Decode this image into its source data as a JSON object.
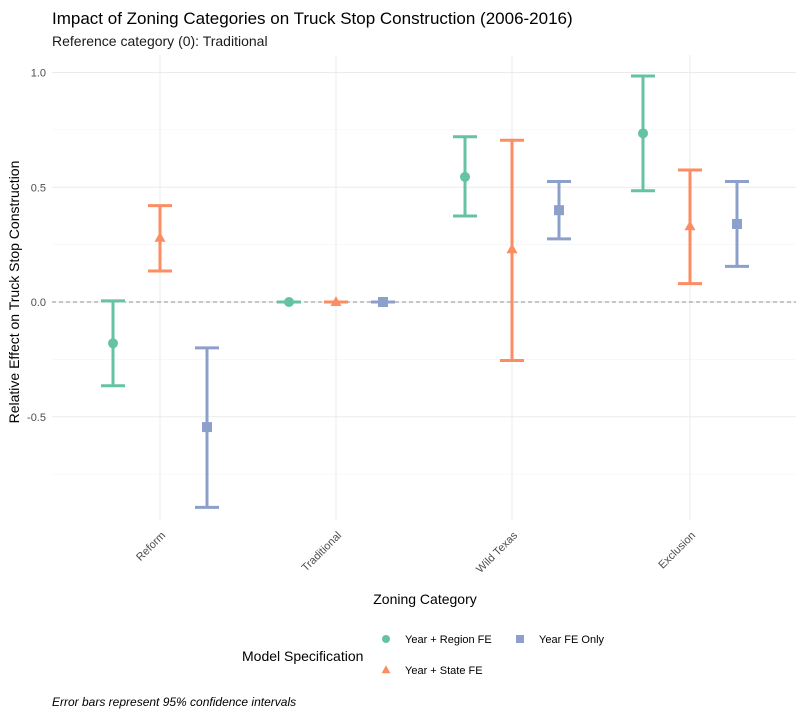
{
  "chart_data": {
    "type": "errorbar",
    "title": "Impact of Zoning Categories on Truck Stop Construction (2006-2016)",
    "subtitle": "Reference category (0): Traditional",
    "xlabel": "Zoning Category",
    "ylabel": "Relative Effect on Truck Stop Construction",
    "caption": "Error bars represent 95% confidence intervals",
    "categories": [
      "Reform",
      "Traditional",
      "Wild Texas",
      "Exclusion"
    ],
    "ylim": [
      -0.9,
      1.05
    ],
    "yticks": [
      -0.5,
      0.0,
      0.5,
      1.0
    ],
    "ytick_labels": [
      "-0.5",
      "0.0",
      "0.5",
      "1.0"
    ],
    "reference_line": 0,
    "grid": true,
    "legend_title": "Model Specification",
    "legend_position": "bottom",
    "series": [
      {
        "name": "Year + Region FE",
        "color": "#66c2a5",
        "marker": "circle",
        "estimates": [
          -0.18,
          0.0,
          0.545,
          0.735
        ],
        "lower": [
          -0.365,
          0.0,
          0.375,
          0.485
        ],
        "upper": [
          0.005,
          0.0,
          0.72,
          0.985
        ]
      },
      {
        "name": "Year + State FE",
        "color": "#fc8d62",
        "marker": "triangle",
        "estimates": [
          0.28,
          0.0,
          0.23,
          0.33
        ],
        "lower": [
          0.135,
          0.0,
          -0.255,
          0.08
        ],
        "upper": [
          0.42,
          0.0,
          0.705,
          0.575
        ]
      },
      {
        "name": "Year FE Only",
        "color": "#8da0cb",
        "marker": "square",
        "estimates": [
          -0.545,
          0.0,
          0.4,
          0.34
        ],
        "lower": [
          -0.895,
          0.0,
          0.275,
          0.155
        ],
        "upper": [
          -0.2,
          0.0,
          0.525,
          0.525
        ]
      }
    ]
  }
}
